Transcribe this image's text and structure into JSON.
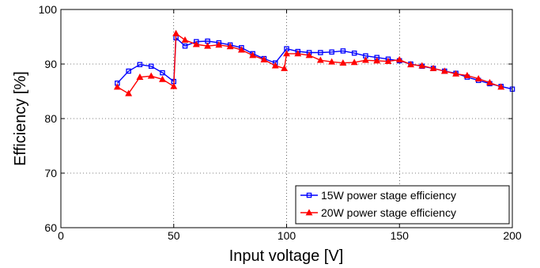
{
  "chart_data": {
    "type": "line",
    "xlabel": "Input voltage [V]",
    "ylabel": "Efficiency [%]",
    "xlim": [
      0,
      200
    ],
    "ylim": [
      60,
      100
    ],
    "xticks": [
      0,
      50,
      100,
      150,
      200
    ],
    "yticks": [
      60,
      70,
      80,
      90,
      100
    ],
    "grid": "dotted",
    "legend_position": "bottom-right",
    "series": [
      {
        "name": "15W power stage efficiency",
        "color": "#0000ff",
        "marker": "square",
        "x": [
          25,
          30,
          35,
          40,
          45,
          50,
          51,
          55,
          60,
          65,
          70,
          75,
          80,
          85,
          90,
          95,
          100,
          105,
          110,
          115,
          120,
          125,
          130,
          135,
          140,
          145,
          150,
          155,
          160,
          165,
          170,
          175,
          180,
          185,
          190,
          195,
          200
        ],
        "y": [
          86.5,
          88.7,
          89.9,
          89.6,
          88.4,
          86.8,
          94.8,
          93.3,
          94.1,
          94.2,
          93.9,
          93.5,
          93.0,
          91.9,
          91.0,
          90.2,
          92.8,
          92.3,
          92.1,
          92.1,
          92.2,
          92.4,
          92.0,
          91.5,
          91.2,
          90.9,
          90.6,
          90.0,
          89.6,
          89.2,
          88.7,
          88.3,
          87.6,
          87.0,
          86.4,
          85.9,
          85.4
        ]
      },
      {
        "name": "20W power stage efficiency",
        "color": "#ff0000",
        "marker": "triangle",
        "x": [
          25,
          30,
          35,
          40,
          45,
          50,
          51,
          55,
          60,
          65,
          70,
          75,
          80,
          85,
          90,
          95,
          99,
          100,
          105,
          110,
          115,
          120,
          125,
          130,
          135,
          140,
          145,
          150,
          155,
          160,
          165,
          170,
          175,
          180,
          185,
          190,
          195
        ],
        "y": [
          85.8,
          84.6,
          87.6,
          87.8,
          87.2,
          85.9,
          95.6,
          94.4,
          93.6,
          93.3,
          93.5,
          93.2,
          92.6,
          91.6,
          90.8,
          89.7,
          89.2,
          91.9,
          91.9,
          91.6,
          90.7,
          90.4,
          90.2,
          90.3,
          90.7,
          90.6,
          90.5,
          90.8,
          89.9,
          89.7,
          89.2,
          88.7,
          88.2,
          87.9,
          87.3,
          86.6,
          85.8
        ]
      }
    ]
  }
}
